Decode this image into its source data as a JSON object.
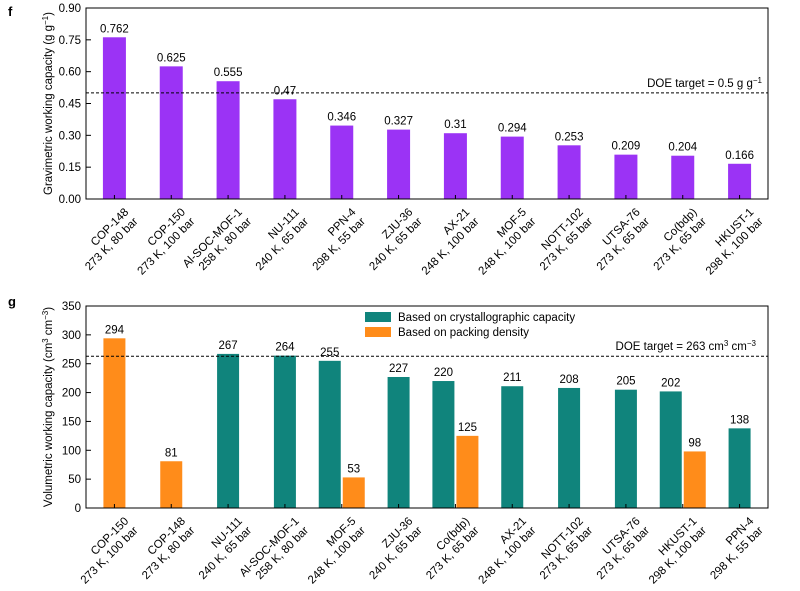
{
  "chart_data": [
    {
      "panel": "f",
      "type": "bar",
      "ylabel_main": "Gravimetric working capacity (g g",
      "ylabel_sup": "−1",
      "ylabel_end": ")",
      "ylim": [
        0,
        0.9
      ],
      "yticks": [
        "0.00",
        "0.15",
        "0.30",
        "0.45",
        "0.60",
        "0.75",
        "0.90"
      ],
      "target": {
        "value": 0.5,
        "label_main": "DOE target = 0.5 g g",
        "label_sup": "−1"
      },
      "categories": [
        {
          "name": "COP-148",
          "cond": "273 K, 80 bar"
        },
        {
          "name": "COP-150",
          "cond": "273 K, 100 bar"
        },
        {
          "name": "Al-SOC-MOF-1",
          "cond": "258 K, 80 bar"
        },
        {
          "name": "NU-111",
          "cond": "240 K, 65 bar"
        },
        {
          "name": "PPN-4",
          "cond": "298 K, 55 bar"
        },
        {
          "name": "ZJU-36",
          "cond": "240 K, 65 bar"
        },
        {
          "name": "AX-21",
          "cond": "248 K, 100 bar"
        },
        {
          "name": "MOF-5",
          "cond": "248 K, 100 bar"
        },
        {
          "name": "NOTT-102",
          "cond": "273 K, 65 bar"
        },
        {
          "name": "UTSA-76",
          "cond": "273 K, 65 bar"
        },
        {
          "name": "Co(bdp)",
          "cond": "273 K, 65 bar"
        },
        {
          "name": "HKUST-1",
          "cond": "298 K, 100 bar"
        }
      ],
      "values": [
        0.762,
        0.625,
        0.555,
        0.47,
        0.346,
        0.327,
        0.31,
        0.294,
        0.253,
        0.209,
        0.204,
        0.166
      ],
      "value_labels": [
        "0.762",
        "0.625",
        "0.555",
        "0.47",
        "0.346",
        "0.327",
        "0.31",
        "0.294",
        "0.253",
        "0.209",
        "0.204",
        "0.166"
      ],
      "color": "#9B33F5"
    },
    {
      "panel": "g",
      "type": "bar",
      "ylabel_main": "Volumetric working capacity (cm",
      "ylabel_sup1": "3",
      "ylabel_mid": " cm",
      "ylabel_sup2": "−3",
      "ylabel_end": ")",
      "ylim": [
        0,
        350
      ],
      "yticks": [
        "0",
        "50",
        "100",
        "150",
        "200",
        "250",
        "300",
        "350"
      ],
      "target": {
        "value": 263,
        "label_main": "DOE target = 263 cm",
        "label_sup1": "3",
        "label_mid": " cm",
        "label_sup2": "−3"
      },
      "legend": [
        {
          "label": "Based on crystallographic capacity",
          "color": "#10847C"
        },
        {
          "label": "Based on packing density",
          "color": "#FF8C1A"
        }
      ],
      "categories": [
        {
          "name": "COP-150",
          "cond": "273 K, 100 bar"
        },
        {
          "name": "COP-148",
          "cond": "273 K, 80 bar"
        },
        {
          "name": "NU-111",
          "cond": "240 K, 65 bar"
        },
        {
          "name": "Al-SOC-MOF-1",
          "cond": "258 K, 80 bar"
        },
        {
          "name": "MOF-5",
          "cond": "248 K, 100 bar"
        },
        {
          "name": "ZJU-36",
          "cond": "240 K, 65 bar"
        },
        {
          "name": "Co(bdp)",
          "cond": "273 K, 65 bar"
        },
        {
          "name": "AX-21",
          "cond": "248 K, 100 bar"
        },
        {
          "name": "NOTT-102",
          "cond": "273 K, 65 bar"
        },
        {
          "name": "UTSA-76",
          "cond": "273 K, 65 bar"
        },
        {
          "name": "HKUST-1",
          "cond": "298 K, 100 bar"
        },
        {
          "name": "PPN-4",
          "cond": "298 K, 55 bar"
        }
      ],
      "series": [
        {
          "name": "Based on crystallographic capacity",
          "values": [
            null,
            null,
            267,
            264,
            255,
            227,
            220,
            211,
            208,
            205,
            202,
            138
          ]
        },
        {
          "name": "Based on packing density",
          "values": [
            294,
            81,
            null,
            null,
            53,
            null,
            125,
            null,
            null,
            null,
            98,
            null
          ]
        }
      ]
    }
  ]
}
